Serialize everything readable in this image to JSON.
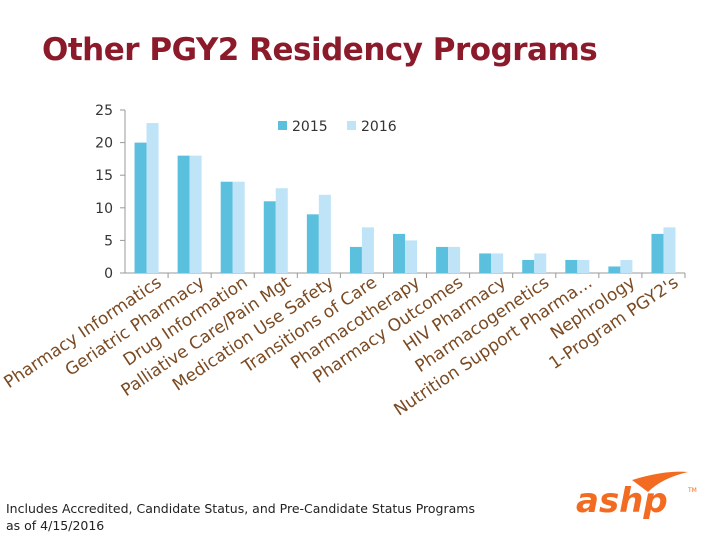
{
  "title": "Other PGY2 Residency Programs",
  "footnote": {
    "line1": "Includes Accredited, Candidate Status, and Pre-Candidate Status Programs",
    "line2": "as of 4/15/2016"
  },
  "logo": {
    "text": "ashp",
    "mark": "TM"
  },
  "colors": {
    "series_2015": "#5bc0de",
    "series_2016": "#bfe3f7",
    "title": "#8b1a2b",
    "logo": "#f26b21"
  },
  "chart_data": {
    "type": "bar",
    "title": "",
    "xlabel": "",
    "ylabel": "",
    "ylim": [
      0,
      25
    ],
    "yticks": [
      0,
      5,
      10,
      15,
      20,
      25
    ],
    "grid": false,
    "legend": "top-center",
    "categories": [
      "Pharmacy Informatics",
      "Geriatric Pharmacy",
      "Drug Information",
      "Palliative Care/Pain Mgt",
      "Medication Use Safety",
      "Transitions of Care",
      "Pharmacotherapy",
      "Pharmacy Outcomes",
      "HIV Pharmacy",
      "Pharmacogenetics",
      "Nutrition Support Pharma…",
      "Nephrology",
      "1-Program PGY2's"
    ],
    "series": [
      {
        "name": "2015",
        "values": [
          20,
          18,
          14,
          11,
          9,
          4,
          6,
          4,
          3,
          2,
          2,
          1,
          6
        ]
      },
      {
        "name": "2016",
        "values": [
          23,
          18,
          14,
          13,
          12,
          7,
          5,
          4,
          3,
          3,
          2,
          2,
          7
        ]
      }
    ]
  }
}
